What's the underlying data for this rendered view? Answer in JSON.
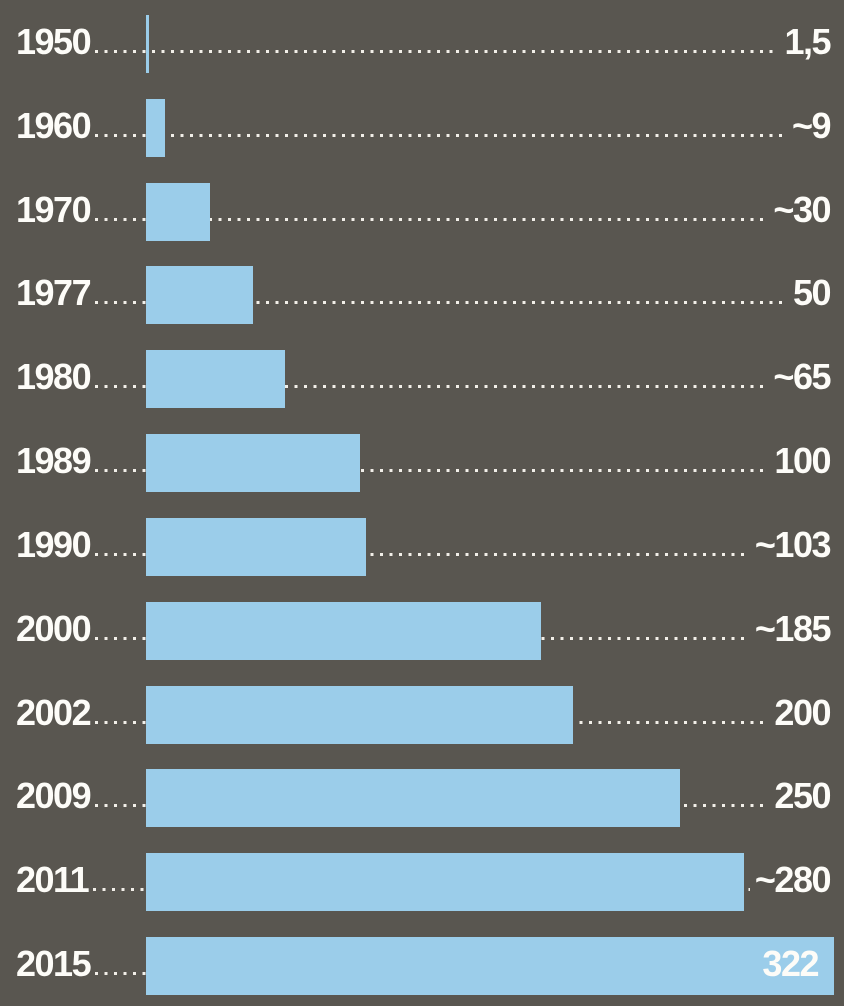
{
  "chart_data": {
    "type": "bar",
    "orientation": "horizontal",
    "title": "",
    "xlabel": "",
    "ylabel": "",
    "grid": false,
    "legend": false,
    "categories": [
      "1950",
      "1960",
      "1970",
      "1977",
      "1980",
      "1989",
      "1990",
      "2000",
      "2002",
      "2009",
      "2011",
      "2015"
    ],
    "values": [
      1.5,
      9,
      30,
      50,
      65,
      100,
      103,
      185,
      200,
      250,
      280,
      322
    ],
    "value_labels": [
      "1,5",
      "~9",
      "~30",
      "50",
      "~65",
      "100",
      "~103",
      "~185",
      "200",
      "250",
      "~280",
      "322"
    ],
    "value_inside_bar": [
      false,
      false,
      false,
      false,
      false,
      false,
      false,
      false,
      false,
      false,
      false,
      true
    ],
    "xlim": [
      0,
      322
    ],
    "layout_hints": {
      "value_label_position": "right-aligned",
      "leader_style": "dotted",
      "last_bar_reaches_right_edge": true
    },
    "colors": {
      "background": "#595650",
      "bar": "#9bcdea",
      "text": "#fdfcf8",
      "leader_dots": "#f2efe9"
    }
  }
}
